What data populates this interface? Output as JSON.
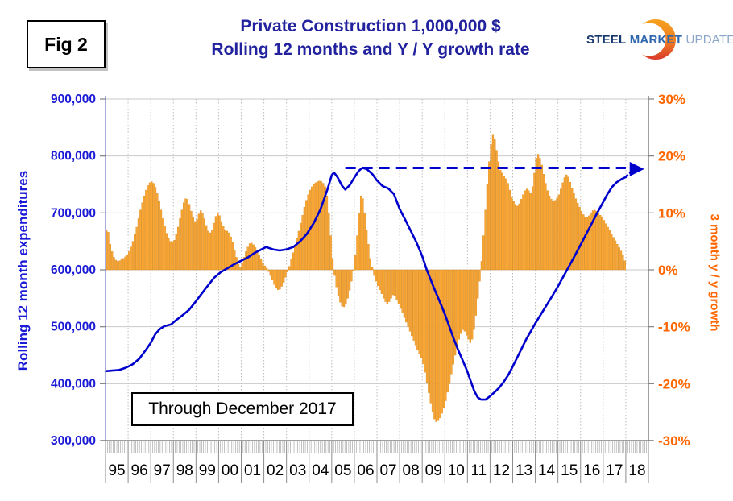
{
  "figure_label": "Fig 2",
  "title_line1": "Private Construction 1,000,000 $",
  "title_line2": "Rolling 12 months and Y / Y growth rate",
  "logo": {
    "word1": "STEEL",
    "word2": "MARKET",
    "word3": "UPDATE"
  },
  "annotation_box": "Through December 2017",
  "left_axis": {
    "title": "Rolling 12 month expenditures",
    "tick_labels": [
      "900,000",
      "800,000",
      "700,000",
      "600,000",
      "500,000",
      "400,000",
      "300,000"
    ],
    "color": "#1b1bd6"
  },
  "right_axis": {
    "title": "3 month y / y growth",
    "tick_labels": [
      "30%",
      "20%",
      "10%",
      "0%",
      "-10%",
      "-20%",
      "-30%"
    ],
    "color": "#ff6600"
  },
  "x_axis": {
    "year_labels": [
      "95",
      "96",
      "97",
      "98",
      "99",
      "00",
      "01",
      "02",
      "03",
      "04",
      "05",
      "06",
      "07",
      "08",
      "09",
      "10",
      "11",
      "12",
      "13",
      "14",
      "15",
      "16",
      "17",
      "18"
    ]
  },
  "colors": {
    "bar_fill": "#faa634",
    "bar_stroke": "#d98a1c",
    "line_blue": "#0000cc",
    "grid": "#c9c9c9",
    "grid_dotted": "#bcbcbc",
    "axis_gray": "#808080",
    "axis_left_line": "#9090d0",
    "title_navy": "#22229e"
  },
  "chart_data": {
    "type": "bar",
    "subtype": "combo bar+line, dual axis",
    "title": "Private Construction 1,000,000 $ — Rolling 12 months and Y / Y growth rate",
    "x_range_years": [
      1995,
      2019
    ],
    "ylim_left": [
      300000,
      900000
    ],
    "ylim_right_pct": [
      -30,
      30
    ],
    "grid": "both",
    "bar_series": {
      "name": "3 month y / y growth (%)",
      "axis": "right",
      "start": "1995-01",
      "frequency": "monthly",
      "end": "2017-12",
      "values": [
        7.0,
        6.6,
        4.5,
        3.2,
        2.2,
        1.7,
        1.5,
        1.6,
        1.8,
        2.0,
        2.3,
        2.6,
        3.2,
        4.0,
        5.0,
        6.2,
        7.5,
        9.0,
        10.5,
        11.8,
        13.0,
        14.0,
        14.8,
        15.3,
        15.5,
        15.2,
        14.5,
        13.4,
        12.0,
        10.5,
        9.0,
        7.6,
        6.4,
        5.5,
        5.0,
        4.8,
        5.2,
        6.2,
        7.5,
        9.0,
        10.5,
        11.8,
        12.5,
        12.4,
        11.5,
        10.3,
        9.2,
        8.5,
        8.8,
        9.8,
        10.4,
        10.0,
        9.0,
        7.8,
        6.8,
        6.5,
        7.0,
        8.2,
        9.4,
        10.0,
        9.5,
        8.5,
        7.6,
        7.0,
        6.8,
        6.5,
        5.8,
        4.8,
        3.5,
        2.2,
        1.0,
        0.5,
        1.2,
        2.2,
        3.2,
        4.0,
        4.6,
        4.7,
        4.4,
        3.9,
        3.2,
        2.5,
        1.8,
        1.2,
        0.7,
        0.3,
        -0.3,
        -1.0,
        -1.8,
        -2.6,
        -3.2,
        -3.5,
        -3.4,
        -2.9,
        -2.2,
        -1.3,
        -0.4,
        0.6,
        1.8,
        3.0,
        4.2,
        5.5,
        6.8,
        8.2,
        9.6,
        11.0,
        12.2,
        13.2,
        14.0,
        14.6,
        15.0,
        15.3,
        15.5,
        15.6,
        15.5,
        15.2,
        14.6,
        13.0,
        10.0,
        6.0,
        2.0,
        -1.0,
        -3.0,
        -4.5,
        -5.7,
        -6.4,
        -6.5,
        -6.0,
        -5.0,
        -3.6,
        -2.0,
        -0.2,
        2.5,
        6.0,
        10.0,
        13.0,
        12.5,
        10.0,
        7.0,
        4.5,
        2.0,
        0.5,
        -1.0,
        -2.0,
        -2.8,
        -3.5,
        -4.2,
        -5.0,
        -5.6,
        -6.0,
        -5.6,
        -5.0,
        -4.4,
        -4.6,
        -5.2,
        -6.0,
        -6.8,
        -7.6,
        -8.4,
        -9.2,
        -10.0,
        -10.8,
        -11.6,
        -12.4,
        -13.2,
        -14.0,
        -14.8,
        -15.5,
        -16.5,
        -18.0,
        -19.8,
        -21.6,
        -23.4,
        -25.0,
        -26.2,
        -26.7,
        -26.5,
        -26.0,
        -25.2,
        -24.2,
        -23.0,
        -21.5,
        -20.0,
        -18.3,
        -16.6,
        -15.0,
        -13.5,
        -12.2,
        -11.2,
        -10.5,
        -10.8,
        -11.5,
        -12.2,
        -12.8,
        -12.2,
        -10.5,
        -8.0,
        -5.0,
        -2.0,
        1.5,
        6.0,
        10.5,
        15.0,
        19.0,
        22.0,
        23.8,
        23.0,
        21.0,
        19.0,
        17.5,
        17.0,
        16.5,
        16.0,
        15.2,
        14.0,
        12.8,
        12.0,
        11.5,
        11.2,
        11.6,
        12.4,
        13.2,
        13.9,
        14.2,
        13.9,
        13.4,
        14.6,
        17.0,
        19.6,
        20.3,
        19.6,
        18.4,
        16.8,
        15.2,
        13.9,
        13.0,
        12.4,
        12.0,
        12.2,
        12.6,
        13.2,
        14.2,
        15.3,
        16.2,
        16.7,
        16.3,
        15.4,
        14.4,
        13.4,
        12.5,
        11.7,
        11.0,
        10.3,
        9.7,
        9.3,
        9.2,
        9.5,
        10.0,
        10.4,
        10.5,
        10.3,
        10.0,
        9.6,
        9.2,
        8.7,
        8.1,
        7.5,
        6.9,
        6.3,
        5.7,
        5.1,
        4.5,
        3.9,
        3.3,
        2.6,
        1.6
      ]
    },
    "line_series": {
      "name": "Rolling 12 month expenditures",
      "axis": "left",
      "points": [
        [
          1995.0,
          422000
        ],
        [
          1995.3,
          423000
        ],
        [
          1995.6,
          424000
        ],
        [
          1995.9,
          428000
        ],
        [
          1996.2,
          434000
        ],
        [
          1996.5,
          444000
        ],
        [
          1996.8,
          460000
        ],
        [
          1997.0,
          472000
        ],
        [
          1997.2,
          487000
        ],
        [
          1997.4,
          496000
        ],
        [
          1997.6,
          501000
        ],
        [
          1997.9,
          504000
        ],
        [
          1998.1,
          511000
        ],
        [
          1998.4,
          520000
        ],
        [
          1998.7,
          530000
        ],
        [
          1999.0,
          545000
        ],
        [
          1999.4,
          566000
        ],
        [
          1999.8,
          586000
        ],
        [
          2000.1,
          596000
        ],
        [
          2000.4,
          603000
        ],
        [
          2000.7,
          610000
        ],
        [
          2001.0,
          616000
        ],
        [
          2001.3,
          622000
        ],
        [
          2001.6,
          630000
        ],
        [
          2001.9,
          636000
        ],
        [
          2002.1,
          640000
        ],
        [
          2002.4,
          636000
        ],
        [
          2002.7,
          634000
        ],
        [
          2003.0,
          636000
        ],
        [
          2003.3,
          640000
        ],
        [
          2003.6,
          650000
        ],
        [
          2003.9,
          663000
        ],
        [
          2004.2,
          682000
        ],
        [
          2004.5,
          706000
        ],
        [
          2004.8,
          740000
        ],
        [
          2005.0,
          766000
        ],
        [
          2005.1,
          771000
        ],
        [
          2005.25,
          763000
        ],
        [
          2005.45,
          748000
        ],
        [
          2005.6,
          741000
        ],
        [
          2005.8,
          749000
        ],
        [
          2006.0,
          762000
        ],
        [
          2006.2,
          774000
        ],
        [
          2006.35,
          779000
        ],
        [
          2006.55,
          777000
        ],
        [
          2006.8,
          768000
        ],
        [
          2007.0,
          757000
        ],
        [
          2007.25,
          747000
        ],
        [
          2007.5,
          743000
        ],
        [
          2007.75,
          733000
        ],
        [
          2008.0,
          707000
        ],
        [
          2008.25,
          688000
        ],
        [
          2008.5,
          668000
        ],
        [
          2008.75,
          648000
        ],
        [
          2009.0,
          624000
        ],
        [
          2009.2,
          600000
        ],
        [
          2009.5,
          570000
        ],
        [
          2009.8,
          542000
        ],
        [
          2010.0,
          522000
        ],
        [
          2010.2,
          500000
        ],
        [
          2010.4,
          478000
        ],
        [
          2010.6,
          458000
        ],
        [
          2010.8,
          440000
        ],
        [
          2011.0,
          421000
        ],
        [
          2011.15,
          404000
        ],
        [
          2011.3,
          387000
        ],
        [
          2011.45,
          376000
        ],
        [
          2011.6,
          372000
        ],
        [
          2011.8,
          372000
        ],
        [
          2012.0,
          378000
        ],
        [
          2012.2,
          385000
        ],
        [
          2012.4,
          393000
        ],
        [
          2012.6,
          403000
        ],
        [
          2012.8,
          415000
        ],
        [
          2013.0,
          430000
        ],
        [
          2013.2,
          446000
        ],
        [
          2013.4,
          462000
        ],
        [
          2013.6,
          478000
        ],
        [
          2013.8,
          492000
        ],
        [
          2014.0,
          506000
        ],
        [
          2014.25,
          522000
        ],
        [
          2014.5,
          538000
        ],
        [
          2014.75,
          554000
        ],
        [
          2015.0,
          571000
        ],
        [
          2015.25,
          589000
        ],
        [
          2015.5,
          607000
        ],
        [
          2015.75,
          625000
        ],
        [
          2016.0,
          644000
        ],
        [
          2016.25,
          663000
        ],
        [
          2016.5,
          682000
        ],
        [
          2016.75,
          701000
        ],
        [
          2017.0,
          719000
        ],
        [
          2017.2,
          734000
        ],
        [
          2017.4,
          746000
        ],
        [
          2017.6,
          754000
        ],
        [
          2017.8,
          759000
        ],
        [
          2017.95,
          762000
        ]
      ]
    },
    "dashed_reference_line": {
      "value_left_axis": 779000,
      "right_axis_equiv_pct": 17.9,
      "x_start": 2005.6,
      "x_end": 2018.0,
      "style": "dashed blue"
    },
    "dotted_projection_arrow": {
      "from": [
        2018.0,
        763000
      ],
      "to": [
        2018.62,
        777000
      ],
      "style": "dotted blue with arrowhead"
    },
    "legend_position": "none"
  }
}
